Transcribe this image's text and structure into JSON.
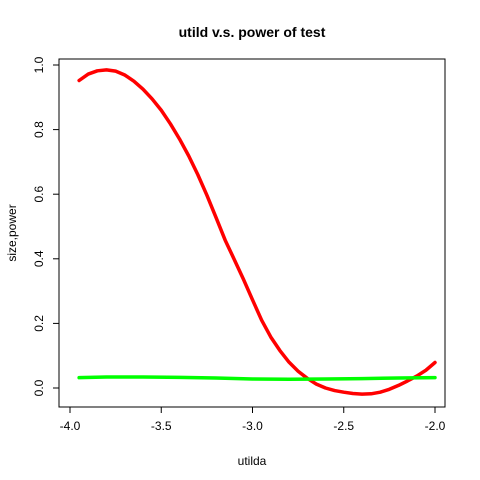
{
  "chart_data": {
    "type": "line",
    "title": "utild v.s. power of test",
    "xlabel": "utilda",
    "ylabel": "size,power",
    "xlim": [
      -4.0,
      -2.0
    ],
    "ylim": [
      0.0,
      1.0
    ],
    "x_ticks": [
      -4.0,
      -3.5,
      -3.0,
      -2.5,
      -2.0
    ],
    "x_tick_labels": [
      "-4.0",
      "-3.5",
      "-3.0",
      "-2.5",
      "-2.0"
    ],
    "y_ticks": [
      0.0,
      0.2,
      0.4,
      0.6,
      0.8,
      1.0
    ],
    "y_tick_labels": [
      "0.0",
      "0.2",
      "0.4",
      "0.6",
      "0.8",
      "1.0"
    ],
    "grid": false,
    "legend": "none",
    "series": [
      {
        "color": "#ff0000",
        "x": [
          -3.95,
          -3.9,
          -3.85,
          -3.8,
          -3.75,
          -3.7,
          -3.65,
          -3.6,
          -3.55,
          -3.5,
          -3.45,
          -3.4,
          -3.35,
          -3.3,
          -3.25,
          -3.2,
          -3.15,
          -3.1,
          -3.05,
          -3.0,
          -2.95,
          -2.9,
          -2.85,
          -2.8,
          -2.75,
          -2.7,
          -2.65,
          -2.6,
          -2.55,
          -2.5,
          -2.45,
          -2.4,
          -2.35,
          -2.3,
          -2.25,
          -2.2,
          -2.15,
          -2.1,
          -2.05,
          -2.0
        ],
        "y": [
          0.952,
          0.972,
          0.982,
          0.985,
          0.981,
          0.969,
          0.95,
          0.925,
          0.895,
          0.86,
          0.818,
          0.771,
          0.719,
          0.661,
          0.597,
          0.528,
          0.458,
          0.398,
          0.337,
          0.273,
          0.21,
          0.158,
          0.116,
          0.08,
          0.052,
          0.03,
          0.012,
          0.0,
          -0.008,
          -0.013,
          -0.017,
          -0.019,
          -0.018,
          -0.013,
          -0.004,
          0.008,
          0.022,
          0.037,
          0.055,
          0.079
        ]
      },
      {
        "color": "#00ff00",
        "x": [
          -3.95,
          -3.8,
          -3.6,
          -3.4,
          -3.2,
          -3.0,
          -2.8,
          -2.6,
          -2.4,
          -2.2,
          -2.0
        ],
        "y": [
          0.032,
          0.034,
          0.034,
          0.033,
          0.031,
          0.028,
          0.027,
          0.028,
          0.029,
          0.031,
          0.032
        ]
      }
    ]
  }
}
